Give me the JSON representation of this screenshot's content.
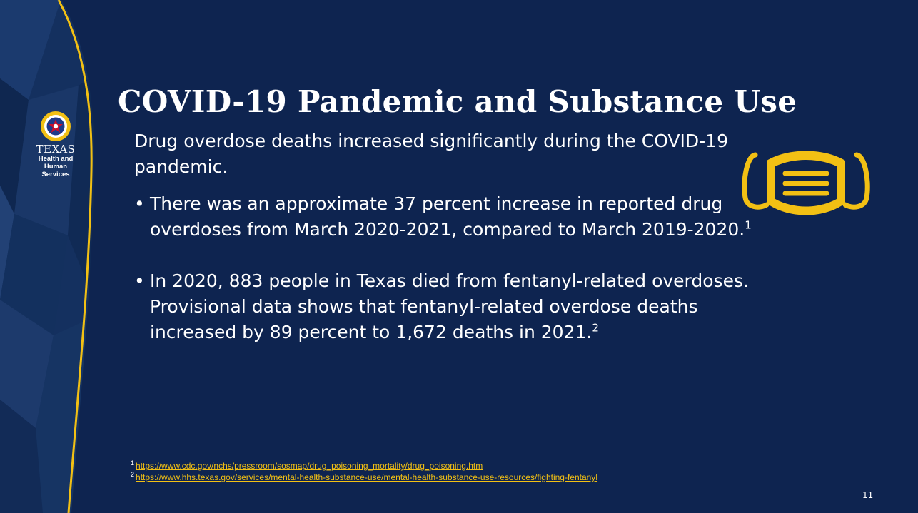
{
  "brand": {
    "state": "TEXAS",
    "agency_line1": "Health and Human",
    "agency_line2": "Services",
    "gold": "#f2c014",
    "navy": "#0e2450"
  },
  "slide": {
    "title": "COVID-19 Pandemic and Substance Use",
    "intro": "Drug overdose deaths increased significantly during the COVID-19 pandemic.",
    "bullets": [
      {
        "text": "There was an approximate 37 percent increase in reported drug overdoses from March 2020-2021, compared to March 2019-2020.",
        "ref": "1"
      },
      {
        "text": "In 2020, 883 people in Texas died from fentanyl-related overdoses. Provisional data shows that fentanyl-related overdose deaths increased by 89 percent to 1,672 deaths in 2021.",
        "ref": "2"
      }
    ],
    "bullet_char": "•",
    "icon": "face-mask-icon",
    "references": [
      {
        "num": "1",
        "url": "https://www.cdc.gov/nchs/pressroom/sosmap/drug_poisoning_mortality/drug_poisoning.htm"
      },
      {
        "num": "2",
        "url": "https://www.hhs.texas.gov/services/mental-health-substance-use/mental-health-substance-use-resources/fighting-fentanyl"
      }
    ],
    "page_number": "11"
  }
}
